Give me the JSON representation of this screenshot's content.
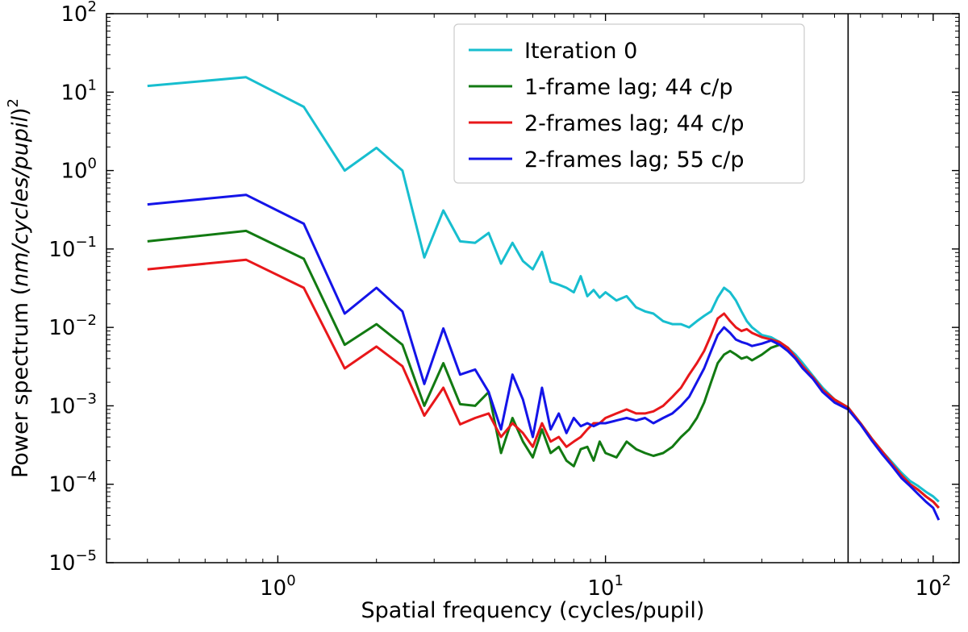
{
  "chart_data": {
    "type": "line",
    "xscale": "log",
    "yscale": "log",
    "xlabel": "Spatial frequency (cycles/pupil)",
    "ylabel": {
      "prefix": "Power spectrum (",
      "italic": "nm/cycles/pupil",
      "suffix": ")",
      "exponent": "2"
    },
    "xlim": [
      0.3,
      120
    ],
    "ylim": [
      1e-05,
      100
    ],
    "x_ticks": [
      {
        "value": 1,
        "base": "10",
        "exp": "0"
      },
      {
        "value": 10,
        "base": "10",
        "exp": "1"
      },
      {
        "value": 100,
        "base": "10",
        "exp": "2"
      }
    ],
    "y_ticks": [
      {
        "value": 1e-05,
        "base": "10",
        "exp": "−5"
      },
      {
        "value": 0.0001,
        "base": "10",
        "exp": "−4"
      },
      {
        "value": 0.001,
        "base": "10",
        "exp": "−3"
      },
      {
        "value": 0.01,
        "base": "10",
        "exp": "−2"
      },
      {
        "value": 0.1,
        "base": "10",
        "exp": "−1"
      },
      {
        "value": 1,
        "base": "10",
        "exp": "0"
      },
      {
        "value": 10,
        "base": "10",
        "exp": "1"
      },
      {
        "value": 100,
        "base": "10",
        "exp": "2"
      }
    ],
    "vline": {
      "x": 55,
      "color": "#000000"
    },
    "legend_position": "upper-center",
    "series": [
      {
        "name": "Iteration 0",
        "color": "#17becf",
        "x": [
          0.4,
          0.8,
          1.2,
          1.6,
          2.0,
          2.4,
          2.8,
          3.2,
          3.6,
          4.0,
          4.4,
          4.8,
          5.2,
          5.6,
          6.0,
          6.4,
          6.8,
          7.2,
          7.6,
          8.0,
          8.4,
          8.8,
          9.2,
          9.6,
          10.0,
          10.8,
          11.6,
          12.4,
          13.2,
          14.0,
          15.0,
          16.0,
          17.0,
          18.0,
          19.0,
          20.0,
          21.0,
          22.0,
          23.0,
          24.0,
          25.0,
          26.0,
          27.0,
          28.0,
          30.0,
          32.0,
          34.0,
          36.0,
          38.0,
          40.0,
          43.0,
          46.0,
          50.0,
          55.0,
          60.0,
          65.0,
          70.0,
          75.0,
          80.0,
          85.0,
          90.0,
          95.0,
          100.0,
          104.0
        ],
        "y": [
          12.0,
          15.5,
          6.5,
          1.0,
          1.95,
          1.0,
          0.078,
          0.31,
          0.125,
          0.12,
          0.16,
          0.065,
          0.12,
          0.07,
          0.055,
          0.092,
          0.038,
          0.035,
          0.032,
          0.028,
          0.045,
          0.025,
          0.03,
          0.024,
          0.028,
          0.022,
          0.025,
          0.018,
          0.016,
          0.015,
          0.012,
          0.011,
          0.011,
          0.01,
          0.012,
          0.014,
          0.016,
          0.024,
          0.032,
          0.028,
          0.022,
          0.016,
          0.012,
          0.01,
          0.008,
          0.0075,
          0.0065,
          0.0055,
          0.0045,
          0.0035,
          0.0024,
          0.0017,
          0.0012,
          0.00095,
          0.0006,
          0.00038,
          0.00026,
          0.00019,
          0.00014,
          0.00011,
          9.5e-05,
          8e-05,
          7e-05,
          6e-05
        ]
      },
      {
        "name": "1-frame lag; 44 c/p",
        "color": "#127a12",
        "x": [
          0.4,
          0.8,
          1.2,
          1.6,
          2.0,
          2.4,
          2.8,
          3.2,
          3.6,
          4.0,
          4.4,
          4.8,
          5.2,
          5.6,
          6.0,
          6.4,
          6.8,
          7.2,
          7.6,
          8.0,
          8.4,
          8.8,
          9.2,
          9.6,
          10.0,
          10.8,
          11.6,
          12.4,
          13.2,
          14.0,
          15.0,
          16.0,
          17.0,
          18.0,
          19.0,
          20.0,
          21.0,
          22.0,
          23.0,
          24.0,
          25.0,
          26.0,
          27.0,
          28.0,
          30.0,
          32.0,
          34.0,
          36.0,
          38.0,
          40.0,
          43.0,
          46.0,
          50.0,
          55.0,
          60.0,
          65.0,
          70.0,
          75.0,
          80.0,
          85.0,
          90.0,
          95.0,
          100.0,
          104.0
        ],
        "y": [
          0.125,
          0.17,
          0.075,
          0.006,
          0.011,
          0.006,
          0.001,
          0.0035,
          0.00105,
          0.001,
          0.0015,
          0.00025,
          0.0007,
          0.00035,
          0.00022,
          0.0005,
          0.00025,
          0.0003,
          0.0002,
          0.00017,
          0.00028,
          0.0003,
          0.0002,
          0.00035,
          0.00025,
          0.00022,
          0.00035,
          0.00028,
          0.00025,
          0.00023,
          0.00025,
          0.0003,
          0.0004,
          0.0005,
          0.0007,
          0.0011,
          0.002,
          0.0035,
          0.0045,
          0.005,
          0.0045,
          0.004,
          0.0042,
          0.0038,
          0.0045,
          0.0055,
          0.006,
          0.0055,
          0.004,
          0.003,
          0.0023,
          0.0016,
          0.0012,
          0.00095,
          0.0006,
          0.00038,
          0.00026,
          0.00018,
          0.00013,
          0.0001,
          8.5e-05,
          7e-05,
          6e-05,
          5e-05
        ]
      },
      {
        "name": "2-frames lag; 44 c/p",
        "color": "#e8171a",
        "x": [
          0.4,
          0.8,
          1.2,
          1.6,
          2.0,
          2.4,
          2.8,
          3.2,
          3.6,
          4.0,
          4.4,
          4.8,
          5.2,
          5.6,
          6.0,
          6.4,
          6.8,
          7.2,
          7.6,
          8.0,
          8.4,
          8.8,
          9.2,
          9.6,
          10.0,
          10.8,
          11.6,
          12.4,
          13.2,
          14.0,
          15.0,
          16.0,
          17.0,
          18.0,
          19.0,
          20.0,
          21.0,
          22.0,
          23.0,
          24.0,
          25.0,
          26.0,
          27.0,
          28.0,
          30.0,
          32.0,
          34.0,
          36.0,
          38.0,
          40.0,
          43.0,
          46.0,
          50.0,
          55.0,
          60.0,
          65.0,
          70.0,
          75.0,
          80.0,
          85.0,
          90.0,
          95.0,
          100.0,
          104.0
        ],
        "y": [
          0.055,
          0.073,
          0.032,
          0.003,
          0.0057,
          0.0032,
          0.00075,
          0.0017,
          0.00058,
          0.0007,
          0.0008,
          0.0004,
          0.0006,
          0.00045,
          0.0003,
          0.0006,
          0.00035,
          0.0004,
          0.0003,
          0.00035,
          0.0004,
          0.0005,
          0.0006,
          0.0006,
          0.0007,
          0.0008,
          0.0009,
          0.0008,
          0.0008,
          0.00085,
          0.001,
          0.0013,
          0.0017,
          0.0025,
          0.0035,
          0.005,
          0.008,
          0.013,
          0.015,
          0.012,
          0.01,
          0.009,
          0.0095,
          0.0085,
          0.0075,
          0.007,
          0.0065,
          0.0055,
          0.0042,
          0.0032,
          0.0023,
          0.0016,
          0.0012,
          0.00095,
          0.0006,
          0.00038,
          0.00026,
          0.00018,
          0.00013,
          0.0001,
          8.5e-05,
          7e-05,
          6e-05,
          5e-05
        ]
      },
      {
        "name": "2-frames lag; 55 c/p",
        "color": "#1414e8",
        "x": [
          0.4,
          0.8,
          1.2,
          1.6,
          2.0,
          2.4,
          2.8,
          3.2,
          3.6,
          4.0,
          4.4,
          4.8,
          5.2,
          5.6,
          6.0,
          6.4,
          6.8,
          7.2,
          7.6,
          8.0,
          8.4,
          8.8,
          9.2,
          9.6,
          10.0,
          10.8,
          11.6,
          12.4,
          13.2,
          14.0,
          15.0,
          16.0,
          17.0,
          18.0,
          19.0,
          20.0,
          21.0,
          22.0,
          23.0,
          24.0,
          25.0,
          26.0,
          27.0,
          28.0,
          30.0,
          32.0,
          34.0,
          36.0,
          38.0,
          40.0,
          43.0,
          46.0,
          50.0,
          55.0,
          60.0,
          65.0,
          70.0,
          75.0,
          80.0,
          85.0,
          90.0,
          95.0,
          100.0,
          104.0
        ],
        "y": [
          0.37,
          0.49,
          0.21,
          0.015,
          0.032,
          0.016,
          0.0019,
          0.0097,
          0.0025,
          0.0029,
          0.0015,
          0.0005,
          0.0025,
          0.0012,
          0.0004,
          0.0017,
          0.0005,
          0.0008,
          0.00045,
          0.0007,
          0.00055,
          0.0006,
          0.00055,
          0.0006,
          0.0006,
          0.00065,
          0.0007,
          0.00065,
          0.0007,
          0.0006,
          0.0007,
          0.0008,
          0.001,
          0.0013,
          0.002,
          0.003,
          0.005,
          0.008,
          0.01,
          0.0085,
          0.007,
          0.0065,
          0.0062,
          0.0058,
          0.0062,
          0.0068,
          0.006,
          0.005,
          0.004,
          0.003,
          0.0022,
          0.0015,
          0.0011,
          0.0009,
          0.00058,
          0.00036,
          0.00024,
          0.00017,
          0.00012,
          9.5e-05,
          7.5e-05,
          6e-05,
          5e-05,
          3.5e-05
        ]
      }
    ]
  }
}
